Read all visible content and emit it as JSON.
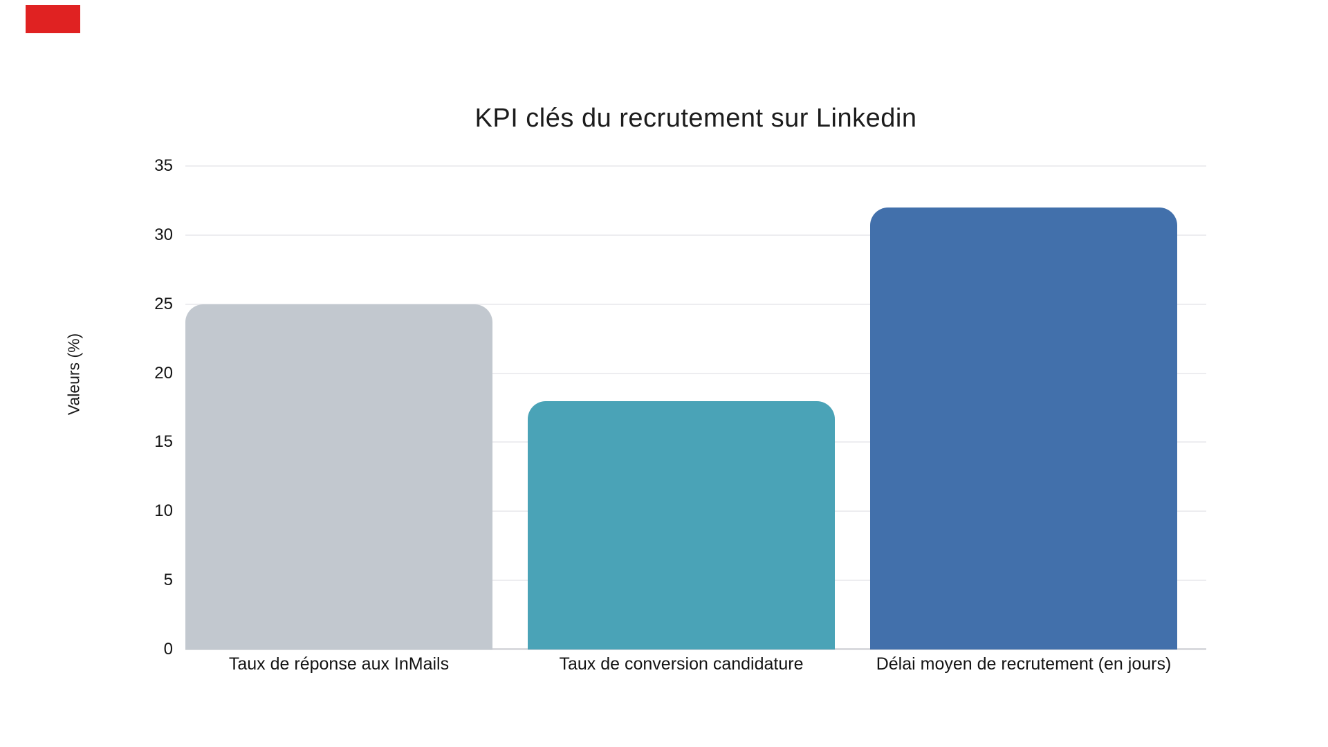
{
  "page": {
    "background": "#ffffff"
  },
  "decoration": {
    "red_marker_color": "#e02222"
  },
  "chart_data": {
    "type": "bar",
    "title": "KPI clés du recrutement sur Linkedin",
    "xlabel": "",
    "ylabel": "Valeurs (%)",
    "categories": [
      "Taux de réponse aux InMails",
      "Taux de conversion candidature",
      "Délai moyen de recrutement (en jours)"
    ],
    "values": [
      25,
      18,
      32
    ],
    "bar_colors": [
      "#c2c8cf",
      "#4aa3b7",
      "#4270ab"
    ],
    "ylim": [
      0,
      35
    ],
    "yticks": [
      0,
      5,
      10,
      15,
      20,
      25,
      30,
      35
    ],
    "grid": true,
    "legend": false,
    "text_color": "#141414",
    "gridline_color": "#ededf0",
    "axisline_color": "#d9dade"
  }
}
